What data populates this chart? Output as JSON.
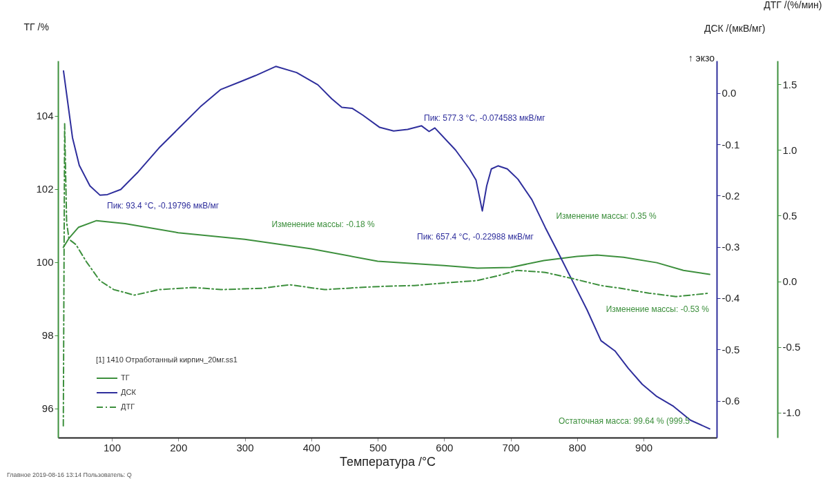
{
  "chart_data": {
    "type": "line",
    "xlabel": "Температура /°C",
    "ylabel": "ТГ /%",
    "y2label": "ДСК /(мкВ/мг)",
    "y3label": "ДТГ /(%/мин)",
    "legend_title": "[1] 1410 Отработанный кирпич_20мг.ss1",
    "legend": "bottom left",
    "xlim": [
      19,
      1010
    ],
    "xticks": [
      100,
      200,
      300,
      400,
      500,
      600,
      700,
      800,
      900
    ],
    "ylim": [
      95.2,
      105.5
    ],
    "yticks": [
      96,
      98,
      100,
      102,
      104
    ],
    "y2lim": [
      -0.672,
      0.063
    ],
    "y2ticks": [
      -0.6,
      -0.5,
      -0.4,
      -0.3,
      -0.2,
      -0.1,
      {
        "value": 0,
        "label": "0.0"
      }
    ],
    "y3lim": [
      -1.19,
      1.68
    ],
    "y3ticks": [
      {
        "value": -1,
        "label": "-1.0"
      },
      -0.5,
      {
        "value": 0,
        "label": "0.0"
      },
      0.5,
      {
        "value": 1,
        "label": "1.0"
      },
      1.5
    ],
    "series": [
      {
        "name": "ТГ",
        "color": "#3c8f3c",
        "line_style": "solid",
        "x": [
          27,
          36,
          50,
          77,
          120,
          200,
          300,
          400,
          500,
          600,
          650,
          700,
          750,
          800,
          830,
          870,
          920,
          960,
          999.5
        ],
        "values": [
          100.4,
          100.66,
          100.95,
          101.13,
          101.05,
          100.8,
          100.62,
          100.36,
          100.02,
          99.9,
          99.83,
          99.85,
          100.04,
          100.15,
          100.19,
          100.13,
          99.98,
          99.77,
          99.66
        ]
      },
      {
        "name": "ДСК",
        "color": "#2e2e9c",
        "axis": "y2",
        "line_style": "solid",
        "x": [
          27.3,
          32.5,
          40.8,
          51,
          67,
          82,
          93.4,
          113.5,
          139.5,
          171,
          202,
          233,
          264,
          295,
          316,
          347,
          378,
          410,
          430.7,
          446,
          462,
          477.5,
          503,
          524,
          545,
          566,
          577.3,
          586,
          617,
          638,
          648,
          657.4,
          664,
          671,
          681,
          695,
          711,
          732,
          752,
          773,
          794,
          815,
          836,
          857,
          877,
          898,
          919,
          945,
          970.5,
          999.5
        ],
        "values": [
          0.043,
          -0.007,
          -0.087,
          -0.141,
          -0.181,
          -0.199,
          -0.198,
          -0.188,
          -0.154,
          -0.107,
          -0.067,
          -0.027,
          0.007,
          0.023,
          0.034,
          0.052,
          0.04,
          0.016,
          -0.011,
          -0.028,
          -0.03,
          -0.043,
          -0.067,
          -0.074,
          -0.071,
          -0.064,
          -0.075,
          -0.068,
          -0.111,
          -0.148,
          -0.17,
          -0.23,
          -0.181,
          -0.148,
          -0.142,
          -0.148,
          -0.168,
          -0.208,
          -0.262,
          -0.315,
          -0.369,
          -0.423,
          -0.483,
          -0.503,
          -0.537,
          -0.568,
          -0.591,
          -0.611,
          -0.638,
          -0.655
        ]
      },
      {
        "name": "ДТГ",
        "color": "#3c8f3c",
        "axis": "y3",
        "line_style": "dashed",
        "x": [
          27,
          29,
          32,
          35.6,
          46,
          61.6,
          82,
          103,
          134,
          171,
          223,
          264,
          326,
          368,
          420,
          472,
          513,
          555,
          607,
          648,
          679,
          710,
          752,
          794,
          836,
          866,
          908,
          949,
          999.5
        ],
        "values": [
          -1.1,
          1.2,
          0.45,
          0.32,
          0.28,
          0.15,
          0.005,
          -0.063,
          -0.105,
          -0.063,
          -0.047,
          -0.063,
          -0.053,
          -0.026,
          -0.063,
          -0.047,
          -0.037,
          -0.032,
          -0.01,
          0.005,
          0.04,
          0.084,
          0.068,
          0.02,
          -0.032,
          -0.053,
          -0.09,
          -0.116,
          -0.09
        ]
      }
    ],
    "annotations": [
      "Пик: 93.4 °C, -0.19796 мкВ/мг",
      "Пик: 577.3 °C, -0.074583 мкВ/мг",
      "Пик: 657.4 °C, -0.22988 мкВ/мг",
      "Изменение массы: -0.18 %",
      "Изменение массы: 0.35 %",
      "Изменение массы: -0.53 %",
      "Остаточная масса: 99.64 % (999.5",
      "↑ экзо",
      "Главное   2019-08-16 13:14   Пользователь: Q"
    ]
  }
}
